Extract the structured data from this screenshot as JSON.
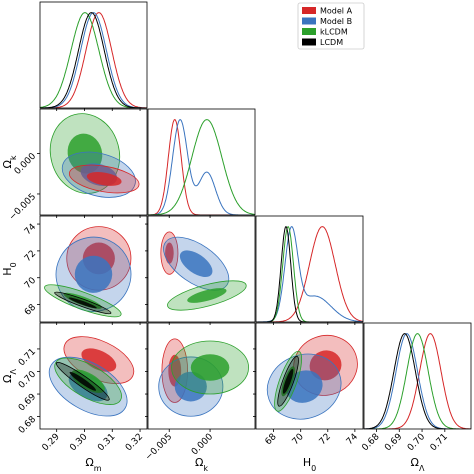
{
  "chart_data": {
    "type": "corner",
    "series": [
      {
        "name": "Model A",
        "color": "#d62728"
      },
      {
        "name": "Model B",
        "color": "#3a74bf"
      },
      {
        "name": "kLCDM",
        "color": "#2ca02c"
      },
      {
        "name": "LCDM",
        "color": "#000000"
      }
    ],
    "legend": "upper right",
    "params": [
      {
        "symbol": "Ω",
        "subscript": "m",
        "lim": [
          0.284,
          0.3225
        ],
        "ticks": [
          0.29,
          {
            "value": 0.3,
            "label": "0.30"
          },
          0.31,
          0.32
        ]
      },
      {
        "symbol": "Ω",
        "subscript": "k",
        "lim": [
          -0.0076,
          0.0055
        ],
        "ticks": [
          {
            "value": -0.005,
            "label": "−0.005"
          },
          {
            "value": 0,
            "label": "0.000"
          }
        ]
      },
      {
        "symbol": "H",
        "subscript": "0",
        "lim": [
          66.7,
          74.6
        ],
        "ticks": [
          68,
          70,
          72,
          74
        ]
      },
      {
        "symbol": "Ω",
        "subscript": "Λ",
        "lim": [
          0.6745,
          0.7215
        ],
        "ticks": [
          0.68,
          0.69,
          {
            "value": 0.7,
            "label": "0.70"
          },
          0.71
        ]
      }
    ]
  }
}
